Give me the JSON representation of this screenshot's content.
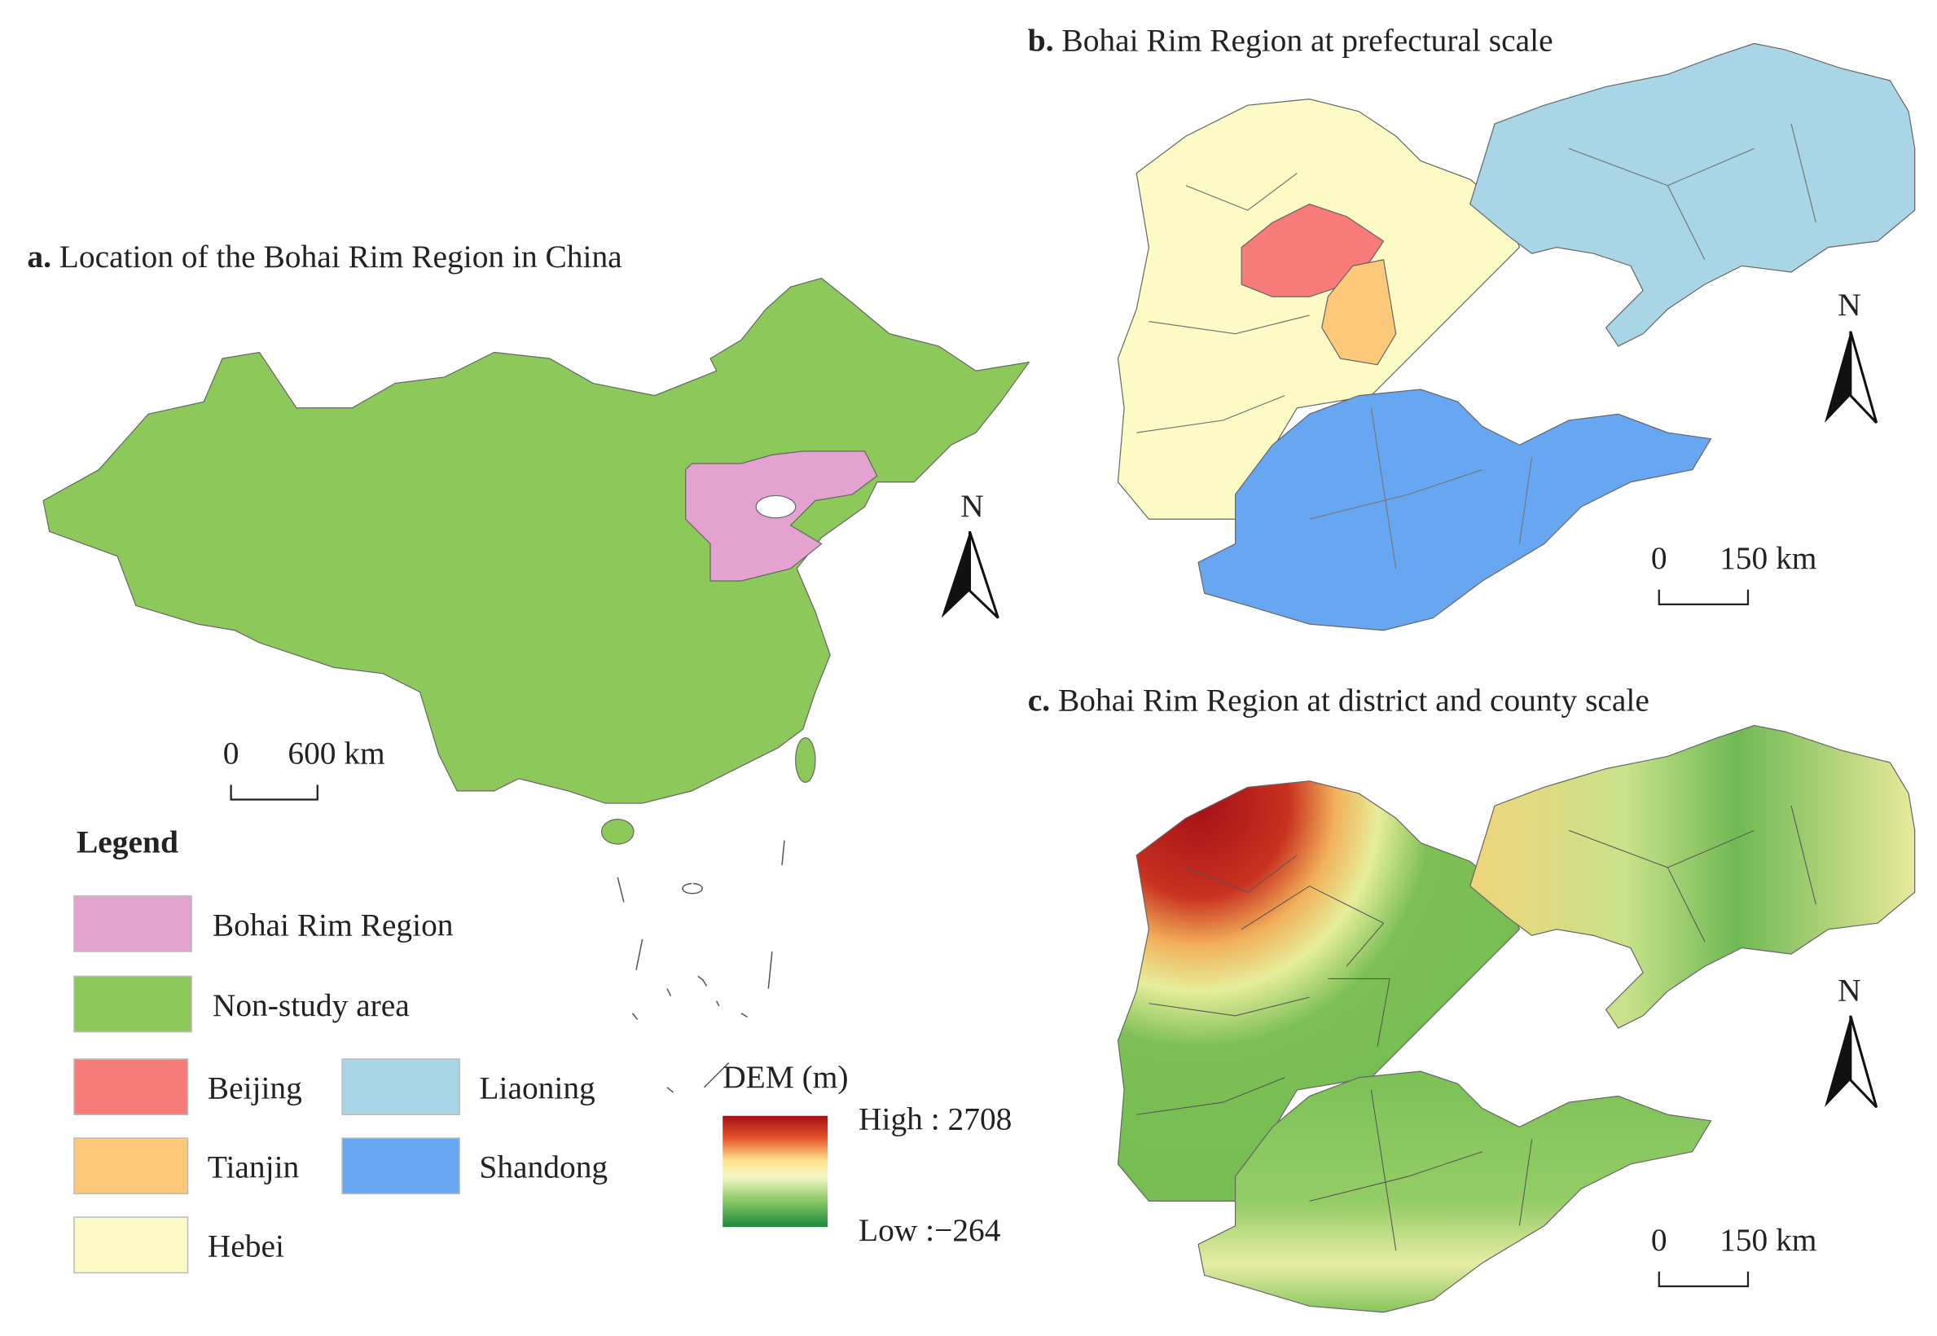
{
  "panels": [
    {
      "label": "a.",
      "title": "Location of the Bohai Rim Region in China",
      "scale": {
        "zero": "0",
        "distance": "600 km"
      },
      "north": "N"
    },
    {
      "label": "b.",
      "title": "Bohai Rim Region at prefectural scale",
      "scale": {
        "zero": "0",
        "distance": "150 km"
      },
      "north": "N"
    },
    {
      "label": "c.",
      "title": "Bohai Rim Region at district and county scale",
      "scale": {
        "zero": "0",
        "distance": "150 km"
      },
      "north": "N"
    }
  ],
  "legend": {
    "title": "Legend",
    "items": [
      {
        "label": "Bohai Rim Region",
        "color": "#e3a2cf"
      },
      {
        "label": "Non-study area",
        "color": "#8cc85a"
      },
      {
        "label": "Beijing",
        "color": "#f77b78"
      },
      {
        "label": "Liaoning",
        "color": "#a9d6e6"
      },
      {
        "label": "Tianjin",
        "color": "#fbc979"
      },
      {
        "label": "Shandong",
        "color": "#67a7f2"
      },
      {
        "label": "Hebei",
        "color": "#fdfbc5"
      }
    ]
  },
  "dem": {
    "title": "DEM (m)",
    "high": "High : 2708",
    "low": "Low :−264"
  }
}
